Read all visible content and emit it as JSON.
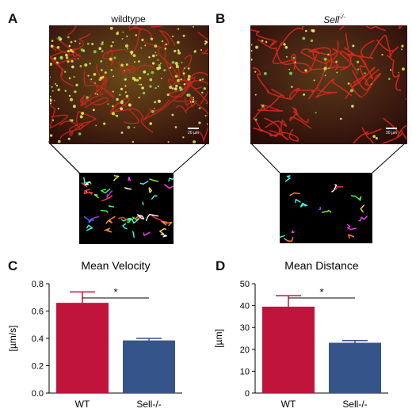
{
  "panels": [
    {
      "letter": "A",
      "title": "wildtype",
      "scale_label": "20 µm",
      "cell_density": "high"
    },
    {
      "letter": "B",
      "title": "Sell",
      "title_superscript": "-/-",
      "scale_label": "20 µm",
      "cell_density": "low"
    }
  ],
  "chart_letters": {
    "c": "C",
    "d": "D"
  },
  "chart_data": [
    {
      "type": "bar",
      "title": "Mean Velocity",
      "ylabel": "[µm/s]",
      "xlabel": "",
      "categories": [
        "WT",
        "Sell-/-"
      ],
      "values": [
        0.66,
        0.385
      ],
      "errors": [
        0.08,
        0.015
      ],
      "colors": [
        "#c0143c",
        "#355489"
      ],
      "ylim": [
        0,
        0.8
      ],
      "yticks": [
        0.0,
        0.2,
        0.4,
        0.6,
        0.8
      ],
      "ytick_labels": [
        "0.0",
        "0.2",
        "0.4",
        "0.6",
        "0.8"
      ],
      "significance": "*"
    },
    {
      "type": "bar",
      "title": "Mean Distance",
      "ylabel": "[µm]",
      "xlabel": "",
      "categories": [
        "WT",
        "Sell-/-"
      ],
      "values": [
        39.5,
        23.0
      ],
      "errors": [
        5.0,
        1.0
      ],
      "colors": [
        "#c0143c",
        "#355489"
      ],
      "ylim": [
        0,
        50
      ],
      "yticks": [
        0,
        10,
        20,
        30,
        40,
        50
      ],
      "ytick_labels": [
        "0",
        "10",
        "20",
        "30",
        "40",
        "50"
      ],
      "significance": "*"
    }
  ]
}
